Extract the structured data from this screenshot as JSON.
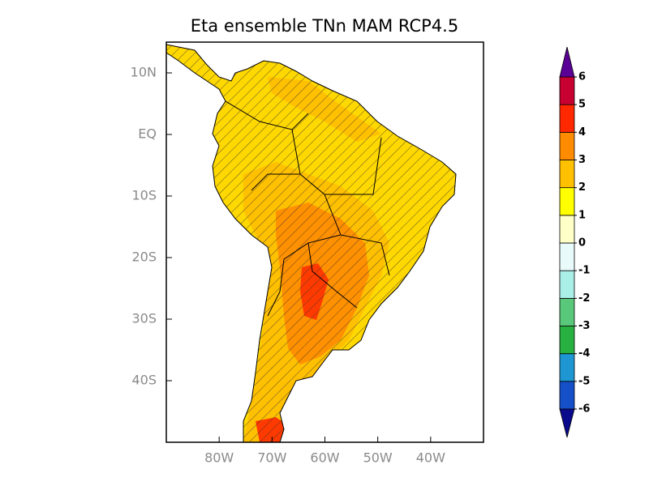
{
  "title": "Eta ensemble TNn MAM RCP4.5",
  "map": {
    "xlim": [
      -90,
      -30
    ],
    "ylim": [
      -50,
      15
    ],
    "xticks": [
      {
        "value": -80,
        "label": "80W"
      },
      {
        "value": -70,
        "label": "70W"
      },
      {
        "value": -60,
        "label": "60W"
      },
      {
        "value": -50,
        "label": "50W"
      },
      {
        "value": -40,
        "label": "40W"
      }
    ],
    "yticks": [
      {
        "value": 10,
        "label": "10N"
      },
      {
        "value": 0,
        "label": "EQ"
      },
      {
        "value": -10,
        "label": "10S"
      },
      {
        "value": -20,
        "label": "20S"
      },
      {
        "value": -30,
        "label": "30S"
      },
      {
        "value": -40,
        "label": "40S"
      }
    ]
  },
  "colorbar": {
    "levels": [
      -6,
      -5,
      -4,
      -3,
      -2,
      -1,
      0,
      1,
      2,
      3,
      4,
      5,
      6
    ],
    "under_color": "#0a0a8c",
    "colors": [
      "#1650c8",
      "#1e96d2",
      "#28b040",
      "#5ac87a",
      "#aaeee8",
      "#e8fafa",
      "#ffffc8",
      "#ffff00",
      "#ffc000",
      "#ff8c00",
      "#ff2800",
      "#c80032"
    ],
    "over_color": "#5a0096"
  }
}
